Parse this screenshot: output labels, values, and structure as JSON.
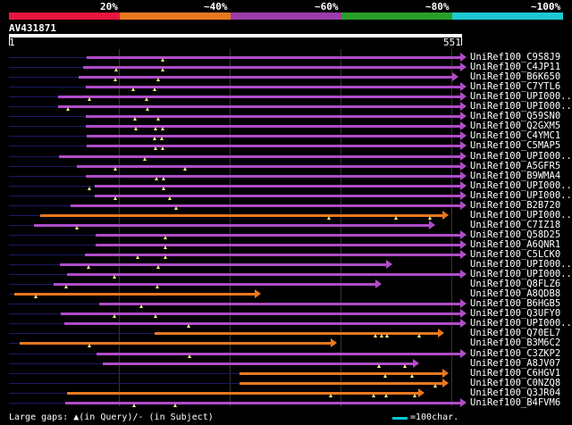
{
  "legend": {
    "labels": [
      "20%",
      "~40%",
      "~60%",
      "~80%",
      "~100%"
    ],
    "colors": [
      "#e8163c",
      "#e8781e",
      "#9b3ca8",
      "#28a028",
      "#1ec8d2"
    ]
  },
  "query": {
    "name": "AV431871",
    "start": "1",
    "end": "551"
  },
  "hits_color_key": {
    "purple": "#b04cc8",
    "orange": "#e8781e"
  },
  "hits": [
    {
      "name": "UniRef100_C9S8J9",
      "color": "purple"
    },
    {
      "name": "UniRef100_C4JP11",
      "color": "purple"
    },
    {
      "name": "UniRef100_B6K650",
      "color": "purple"
    },
    {
      "name": "UniRef100_C7YTL6",
      "color": "purple"
    },
    {
      "name": "UniRef100_UPI000...",
      "color": "purple"
    },
    {
      "name": "UniRef100_UPI000...",
      "color": "purple"
    },
    {
      "name": "UniRef100_Q59SN0",
      "color": "purple"
    },
    {
      "name": "UniRef100_Q2GXM5",
      "color": "purple"
    },
    {
      "name": "UniRef100_C4YMC1",
      "color": "purple"
    },
    {
      "name": "UniRef100_C5MAP5",
      "color": "purple"
    },
    {
      "name": "UniRef100_UPI000...",
      "color": "purple"
    },
    {
      "name": "UniRef100_A5GFR5",
      "color": "purple"
    },
    {
      "name": "UniRef100_B9WMA4",
      "color": "purple"
    },
    {
      "name": "UniRef100_UPI000...",
      "color": "purple"
    },
    {
      "name": "UniRef100_UPI000...",
      "color": "purple"
    },
    {
      "name": "UniRef100_B2B720",
      "color": "purple"
    },
    {
      "name": "UniRef100_UPI000...",
      "color": "orange"
    },
    {
      "name": "UniRef100_C7IZ18",
      "color": "purple"
    },
    {
      "name": "UniRef100_Q58D25",
      "color": "purple"
    },
    {
      "name": "UniRef100_A6QNR1",
      "color": "purple"
    },
    {
      "name": "UniRef100_C5LCK0",
      "color": "purple"
    },
    {
      "name": "UniRef100_UPI000...",
      "color": "purple"
    },
    {
      "name": "UniRef100_UPI000...",
      "color": "purple"
    },
    {
      "name": "UniRef100_Q8FLZ6",
      "color": "purple"
    },
    {
      "name": "UniRef100_A8QDB8",
      "color": "orange"
    },
    {
      "name": "UniRef100_B6HGB5",
      "color": "purple"
    },
    {
      "name": "UniRef100_Q3UFY0",
      "color": "purple"
    },
    {
      "name": "UniRef100_UPI000...",
      "color": "purple"
    },
    {
      "name": "UniRef100_Q70EL7",
      "color": "orange"
    },
    {
      "name": "UniRef100_B3M6C2",
      "color": "orange"
    },
    {
      "name": "UniRef100_C3ZKP2",
      "color": "purple"
    },
    {
      "name": "UniRef100_A8JV07",
      "color": "purple"
    },
    {
      "name": "UniRef100_C6HGV1",
      "color": "orange"
    },
    {
      "name": "UniRef100_C0NZQ8",
      "color": "orange"
    },
    {
      "name": "UniRef100_Q3JR04",
      "color": "orange"
    },
    {
      "name": "UniRef100_B4FVM6",
      "color": "purple"
    }
  ],
  "footer": {
    "gaps_label": "Large gaps: ▲(in Query)/- (in Subject)",
    "scale_label": "=100char."
  }
}
